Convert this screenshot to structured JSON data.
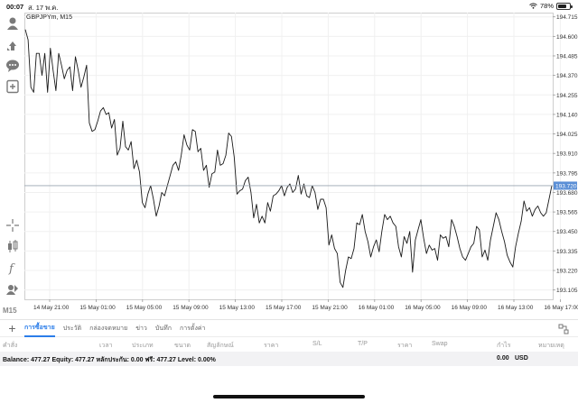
{
  "status": {
    "time": "00:07",
    "date": "ส. 17 พ.ค.",
    "battery": "78%",
    "battery_level": 78
  },
  "toolbar": {
    "top_tools": [
      "quotes-person-icon",
      "trade-arrows-icon",
      "chat-bubble-icon",
      "new-order-icon"
    ],
    "bottom_tools": [
      "crosshair-icon",
      "indicators-icon",
      "function-icon",
      "objects-icon"
    ],
    "timeframe": "M15"
  },
  "chart": {
    "symbol_label": "GBPJPYm, M15",
    "current_price": "193.720",
    "bid_line_color": "#9aa5b0",
    "price_tag_color": "#5b8fd6",
    "line_color": "#1a1a1a"
  },
  "chart_data": {
    "type": "line",
    "series": [
      {
        "values": [
          194.64,
          194.58,
          194.3,
          194.27,
          194.5,
          194.5,
          194.37,
          194.5,
          194.27,
          194.53,
          194.4,
          194.28,
          194.5,
          194.43,
          194.35,
          194.4,
          194.42,
          194.28,
          194.48,
          194.4,
          194.3,
          194.36,
          194.43,
          194.09,
          194.04,
          194.05,
          194.1,
          194.16,
          194.18,
          194.14,
          194.15,
          194.06,
          194.11,
          193.9,
          193.94,
          194.1,
          193.95,
          193.93,
          193.98,
          193.82,
          193.87,
          193.8,
          193.62,
          193.59,
          193.67,
          193.72,
          193.64,
          193.54,
          193.6,
          193.68,
          193.66,
          193.72,
          193.78,
          193.84,
          193.86,
          193.81,
          193.9,
          194.02,
          193.96,
          193.93,
          194.05,
          194.04,
          193.92,
          193.94,
          193.81,
          193.84,
          193.71,
          193.79,
          193.8,
          193.93,
          193.84,
          193.85,
          193.9,
          194.03,
          194.01,
          193.89,
          193.67,
          193.69,
          193.7,
          193.75,
          193.77,
          193.68,
          193.53,
          193.61,
          193.5,
          193.54,
          193.5,
          193.62,
          193.57,
          193.66,
          193.67,
          193.69,
          193.72,
          193.66,
          193.71,
          193.73,
          193.68,
          193.7,
          193.78,
          193.67,
          193.73,
          193.66,
          193.65,
          193.72,
          193.68,
          193.58,
          193.64,
          193.64,
          193.59,
          193.37,
          193.43,
          193.35,
          193.32,
          193.15,
          193.12,
          193.22,
          193.3,
          193.29,
          193.35,
          193.5,
          193.49,
          193.55,
          193.45,
          193.39,
          193.3,
          193.36,
          193.4,
          193.33,
          193.45,
          193.55,
          193.52,
          193.54,
          193.5,
          193.48,
          193.36,
          193.3,
          193.42,
          193.38,
          193.45,
          193.21,
          193.4,
          193.46,
          193.52,
          193.41,
          193.32,
          193.37,
          193.34,
          193.35,
          193.28,
          193.43,
          193.41,
          193.42,
          193.36,
          193.52,
          193.48,
          193.42,
          193.35,
          193.3,
          193.28,
          193.32,
          193.36,
          193.38,
          193.48,
          193.46,
          193.3,
          193.34,
          193.28,
          193.4,
          193.48,
          193.56,
          193.52,
          193.45,
          193.39,
          193.31,
          193.27,
          193.24,
          193.36,
          193.44,
          193.51,
          193.63,
          193.57,
          193.59,
          193.54,
          193.58,
          193.6,
          193.56,
          193.54,
          193.56,
          193.64,
          193.72
        ]
      }
    ],
    "x_tick_labels": [
      "14 May 21:00",
      "15 May 01:00",
      "15 May 05:00",
      "15 May 09:00",
      "15 May 13:00",
      "15 May 17:00",
      "15 May 21:00",
      "16 May 01:00",
      "16 May 05:00",
      "16 May 09:00",
      "16 May 13:00",
      "16 May 17:00"
    ],
    "y_tick_labels": [
      "194.715",
      "194.600",
      "194.485",
      "194.370",
      "194.255",
      "194.140",
      "194.025",
      "193.910",
      "193.795",
      "193.680",
      "193.565",
      "193.450",
      "193.335",
      "193.220",
      "193.105"
    ],
    "ylim": [
      193.05,
      194.74
    ],
    "grid": true
  },
  "tabs": {
    "items": [
      {
        "label": "การซื้อขาย",
        "active": true
      },
      {
        "label": "ประวัติ",
        "active": false
      },
      {
        "label": "กล่องจดหมาย",
        "active": false
      },
      {
        "label": "ข่าว",
        "active": false
      },
      {
        "label": "บันทึก",
        "active": false
      },
      {
        "label": "การตั้งค่า",
        "active": false
      }
    ]
  },
  "columns": [
    "คำสั่ง",
    "เวลา",
    "ประเภท",
    "ขนาด",
    "สัญลักษณ์",
    "ราคา",
    "S/L",
    "T/P",
    "ราคา",
    "Swap",
    "กำไร",
    "หมายเหตุ"
  ],
  "balance": {
    "text": "Balance: 477.27 Equity: 477.27 หลักประกัน: 0.00 ฟรี: 477.27 Level: 0.00%",
    "profit": "0.00",
    "currency": "USD"
  }
}
